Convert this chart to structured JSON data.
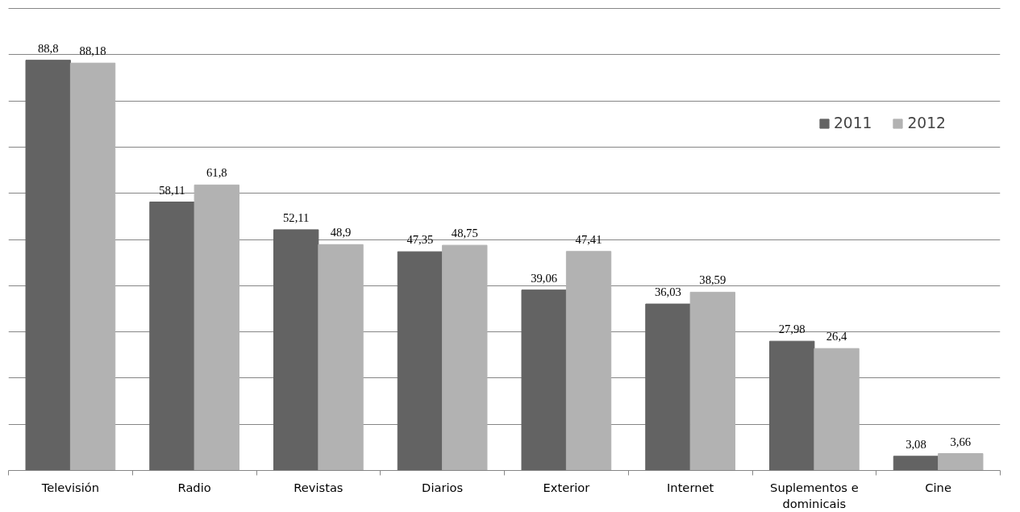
{
  "chart_data": {
    "type": "bar",
    "categories": [
      "Televisión",
      "Radio",
      "Revistas",
      "Diarios",
      "Exterior",
      "Internet",
      "Suplementos e\ndominicais",
      "Cine"
    ],
    "series": [
      {
        "name": "2011",
        "color": "#636363",
        "values": [
          88.8,
          58.11,
          52.11,
          47.35,
          39.06,
          36.03,
          27.98,
          3.08
        ],
        "value_labels": [
          "88,8",
          "58,11",
          "52,11",
          "47,35",
          "39,06",
          "36,03",
          "27,98",
          "3,08"
        ]
      },
      {
        "name": "2012",
        "color": "#b2b2b2",
        "values": [
          88.18,
          61.8,
          48.9,
          48.75,
          47.41,
          38.59,
          26.4,
          3.66
        ],
        "value_labels": [
          "88,18",
          "61,8",
          "48,9",
          "48,75",
          "47,41",
          "38,59",
          "26,4",
          "3,66"
        ]
      }
    ],
    "ylim": [
      0,
      100
    ],
    "yticks": [
      {
        "value": 0,
        "label": null
      },
      {
        "value": 10,
        "label": null
      },
      {
        "value": 20,
        "label": null
      },
      {
        "value": 30,
        "label": null
      },
      {
        "value": 40,
        "label": null
      },
      {
        "value": 50,
        "label": null
      },
      {
        "value": 60,
        "label": null
      },
      {
        "value": 70,
        "label": null
      },
      {
        "value": 80,
        "label": null
      },
      {
        "value": 90,
        "label": null
      },
      {
        "value": 100,
        "label": null
      }
    ],
    "tick_labels": "x",
    "grid": "y",
    "legend": "top right"
  }
}
